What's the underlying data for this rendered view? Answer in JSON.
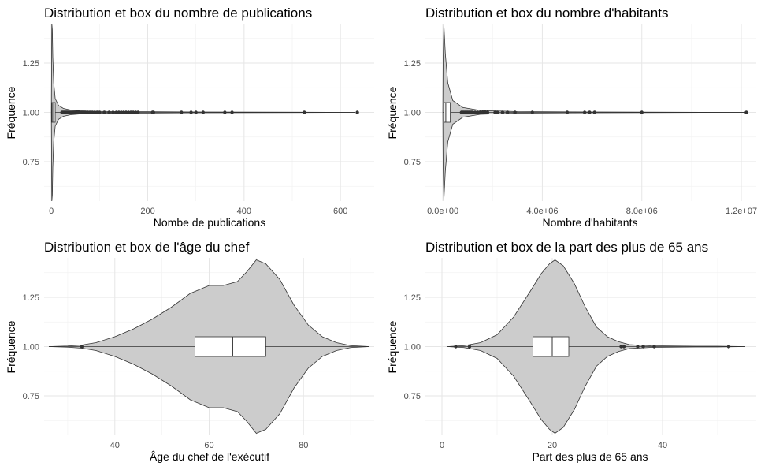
{
  "chart_data": [
    {
      "type": "violin",
      "title": "Distribution et box du nombre de publications",
      "xlabel": "Nombe de publications",
      "ylabel": "Fréquence",
      "xlim": [
        -15,
        670
      ],
      "ylim": [
        0.55,
        1.45
      ],
      "xticks": [
        0,
        200,
        400,
        600
      ],
      "xtick_labels": [
        "0",
        "200",
        "400",
        "600"
      ],
      "yticks": [
        0.75,
        1.0,
        1.25
      ],
      "ytick_labels": [
        "0.75",
        "1.00",
        "1.25"
      ],
      "grid": true,
      "violin_center": 1.0,
      "violin_profile": [
        [
          0,
          0
        ],
        [
          0.5,
          0.25
        ],
        [
          1,
          0.45
        ],
        [
          2,
          0.42
        ],
        [
          3,
          0.28
        ],
        [
          5,
          0.15
        ],
        [
          8,
          0.07
        ],
        [
          15,
          0.035
        ],
        [
          25,
          0.02
        ],
        [
          40,
          0.012
        ],
        [
          60,
          0.008
        ],
        [
          100,
          0.005
        ],
        [
          300,
          0.002
        ],
        [
          630,
          0
        ]
      ],
      "box": {
        "q1": 1,
        "median": 3,
        "q3": 8,
        "whisker_low": 0,
        "whisker_high": 20
      },
      "outliers": [
        22,
        24,
        26,
        28,
        30,
        32,
        34,
        36,
        38,
        40,
        42,
        44,
        46,
        48,
        50,
        53,
        56,
        59,
        62,
        65,
        70,
        75,
        80,
        85,
        90,
        95,
        100,
        110,
        120,
        128,
        135,
        140,
        145,
        150,
        155,
        160,
        165,
        170,
        175,
        180,
        210,
        212,
        270,
        290,
        300,
        315,
        360,
        375,
        525,
        635
      ]
    },
    {
      "type": "violin",
      "title": "Distribution et box du nombre d'habitants",
      "xlabel": "Nombre d'habitants",
      "ylabel": "Fréquence",
      "xlim": [
        -700000,
        12600000
      ],
      "ylim": [
        0.55,
        1.45
      ],
      "xticks": [
        0,
        4000000,
        8000000,
        12000000
      ],
      "xtick_labels": [
        "0.0e+00",
        "4.0e+06",
        "8.0e+06",
        "1.2e+07"
      ],
      "yticks": [
        0.75,
        1.0,
        1.25
      ],
      "ytick_labels": [
        "0.75",
        "1.00",
        "1.25"
      ],
      "grid": true,
      "violin_center": 1.0,
      "violin_profile": [
        [
          0,
          0
        ],
        [
          10000,
          0.25
        ],
        [
          40000,
          0.45
        ],
        [
          100000,
          0.3
        ],
        [
          200000,
          0.15
        ],
        [
          400000,
          0.06
        ],
        [
          800000,
          0.025
        ],
        [
          1500000,
          0.01
        ],
        [
          3000000,
          0.004
        ],
        [
          6000000,
          0.002
        ],
        [
          12200000,
          0
        ]
      ],
      "box": {
        "q1": 50000,
        "median": 120000,
        "q3": 300000,
        "whisker_low": 0,
        "whisker_high": 700000
      },
      "outliers": [
        750000,
        800000,
        850000,
        900000,
        950000,
        1000000,
        1050000,
        1100000,
        1150000,
        1200000,
        1300000,
        1400000,
        1500000,
        1600000,
        1700000,
        1800000,
        2100000,
        2200000,
        2400000,
        2600000,
        2900000,
        3600000,
        5000000,
        5700000,
        5900000,
        6100000,
        8000000,
        12200000
      ]
    },
    {
      "type": "violin",
      "title": "Distribution et box de l'âge du chef",
      "xlabel": "Âge du chef de l'exécutif",
      "ylabel": "Fréquence",
      "xlim": [
        25,
        95
      ],
      "ylim": [
        0.55,
        1.45
      ],
      "xticks": [
        40,
        60,
        80
      ],
      "xtick_labels": [
        "40",
        "60",
        "80"
      ],
      "yticks": [
        0.75,
        1.0,
        1.25
      ],
      "ytick_labels": [
        "0.75",
        "1.00",
        "1.25"
      ],
      "grid": true,
      "violin_center": 1.0,
      "violin_profile": [
        [
          26,
          0
        ],
        [
          30,
          0.003
        ],
        [
          33,
          0.008
        ],
        [
          36,
          0.02
        ],
        [
          40,
          0.05
        ],
        [
          44,
          0.09
        ],
        [
          48,
          0.14
        ],
        [
          52,
          0.2
        ],
        [
          56,
          0.27
        ],
        [
          60,
          0.31
        ],
        [
          63,
          0.31
        ],
        [
          66,
          0.33
        ],
        [
          68,
          0.38
        ],
        [
          70,
          0.44
        ],
        [
          72,
          0.42
        ],
        [
          75,
          0.34
        ],
        [
          78,
          0.21
        ],
        [
          81,
          0.11
        ],
        [
          84,
          0.05
        ],
        [
          87,
          0.02
        ],
        [
          90,
          0.005
        ],
        [
          94,
          0
        ]
      ],
      "box": {
        "q1": 57,
        "median": 65,
        "q3": 72,
        "whisker_low": 35,
        "whisker_high": 86
      },
      "outliers": [
        33
      ]
    },
    {
      "type": "violin",
      "title": "Distribution et box de la part des plus de 65 ans",
      "xlabel": "Part des plus de 65 ans",
      "ylabel": "Fréquence",
      "xlim": [
        -3,
        57
      ],
      "ylim": [
        0.55,
        1.45
      ],
      "xticks": [
        0,
        20,
        40
      ],
      "xtick_labels": [
        "0",
        "20",
        "40"
      ],
      "yticks": [
        0.75,
        1.0,
        1.25
      ],
      "ytick_labels": [
        "0.75",
        "1.00",
        "1.25"
      ],
      "grid": true,
      "violin_center": 1.0,
      "violin_profile": [
        [
          1,
          0
        ],
        [
          4,
          0.005
        ],
        [
          7,
          0.02
        ],
        [
          10,
          0.06
        ],
        [
          13,
          0.15
        ],
        [
          16,
          0.28
        ],
        [
          18,
          0.37
        ],
        [
          19.5,
          0.42
        ],
        [
          20.5,
          0.44
        ],
        [
          22,
          0.41
        ],
        [
          24,
          0.32
        ],
        [
          26,
          0.2
        ],
        [
          28,
          0.1
        ],
        [
          30,
          0.05
        ],
        [
          32,
          0.025
        ],
        [
          34,
          0.01
        ],
        [
          38,
          0.004
        ],
        [
          42,
          0.003
        ],
        [
          46,
          0.002
        ],
        [
          50,
          0.002
        ],
        [
          55,
          0
        ]
      ],
      "box": {
        "q1": 16.5,
        "median": 20,
        "q3": 23,
        "whisker_low": 6,
        "whisker_high": 32
      },
      "outliers": [
        2.5,
        5,
        32.5,
        33,
        35.5,
        36.5,
        38.5,
        52
      ]
    }
  ]
}
